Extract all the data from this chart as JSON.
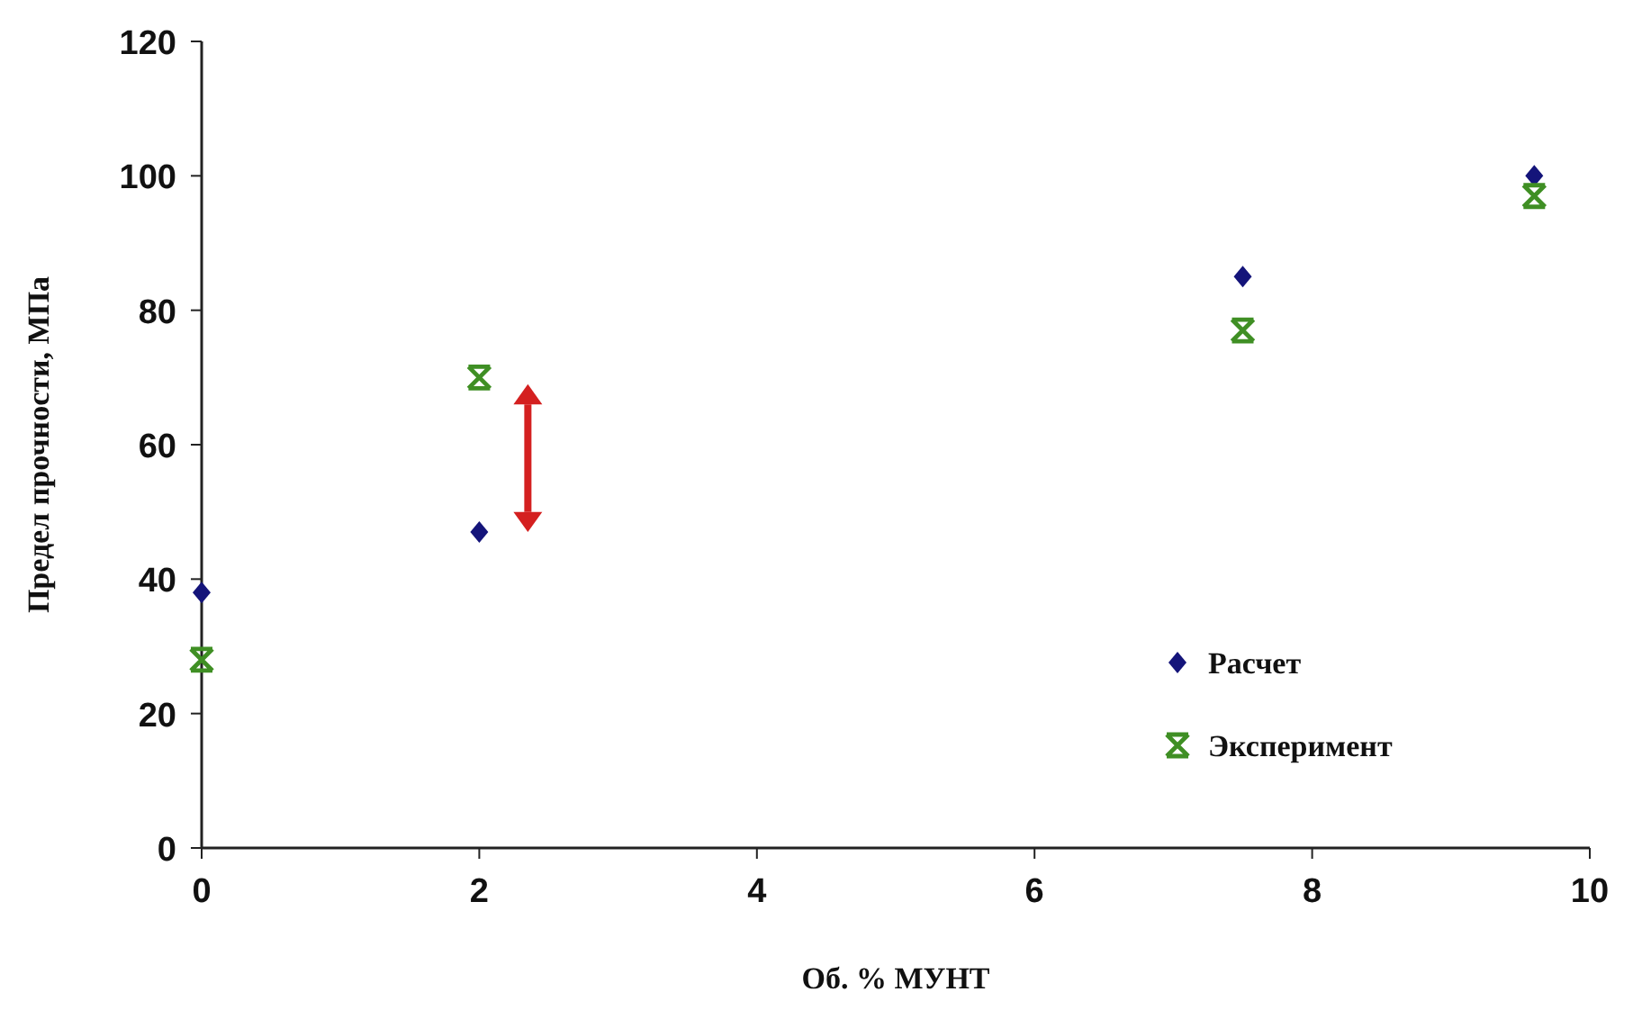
{
  "chart_data": {
    "type": "scatter",
    "xlabel": "Об. % МУНТ",
    "ylabel": "Предел прочности, МПа",
    "xlim": [
      0,
      10
    ],
    "xticks": [
      0,
      2,
      4,
      6,
      8,
      10
    ],
    "ylim": [
      0,
      120
    ],
    "yticks": [
      0,
      20,
      40,
      60,
      80,
      100,
      120
    ],
    "grid": false,
    "legend": "bottom right",
    "series": [
      {
        "name": "Расчет",
        "color": "#14147a",
        "marker": "diamond",
        "x": [
          0,
          2,
          7.5,
          9.6
        ],
        "values": [
          38,
          47,
          85,
          100
        ]
      },
      {
        "name": "Эксперимент",
        "color": "#3f8f24",
        "marker": "cross",
        "x": [
          0,
          2,
          7.5,
          9.6
        ],
        "values": [
          28,
          70,
          77,
          97
        ]
      }
    ]
  }
}
